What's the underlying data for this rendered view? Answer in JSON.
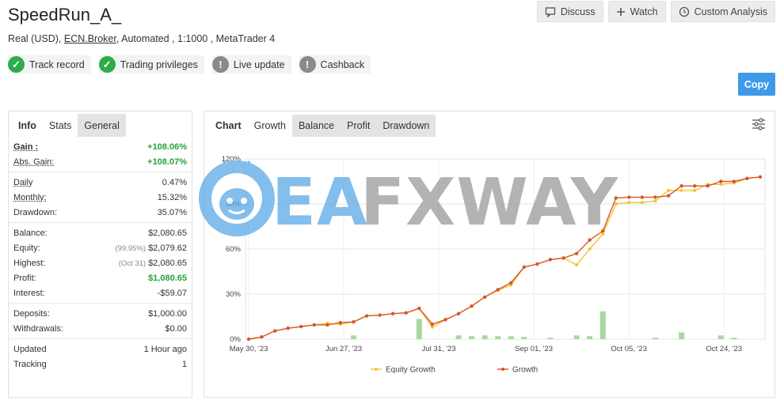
{
  "header": {
    "title": "SpeedRun_A_",
    "account_type": "Real (USD),",
    "broker": "ECN.Broker",
    "details": ", Automated , 1:1000 , MetaTrader 4"
  },
  "actions": {
    "discuss": "Discuss",
    "watch": "Watch",
    "custom_analysis": "Custom Analysis",
    "copy": "Copy"
  },
  "badges": [
    {
      "label": "Track record",
      "status": "ok"
    },
    {
      "label": "Trading privileges",
      "status": "ok"
    },
    {
      "label": "Live update",
      "status": "warn"
    },
    {
      "label": "Cashback",
      "status": "warn"
    }
  ],
  "left_tabs": {
    "info": "Info",
    "stats": "Stats",
    "general": "General"
  },
  "stats": {
    "gain_label": "Gain :",
    "gain": "+108.06%",
    "abs_gain_label": "Abs. Gain:",
    "abs_gain": "+108.07%",
    "daily_label": "Daily",
    "daily": "0.47%",
    "monthly_label": "Monthly:",
    "monthly": "15.32%",
    "drawdown_label": "Drawdown:",
    "drawdown": "35.07%",
    "balance_label": "Balance:",
    "balance": "$2,080.65",
    "equity_label": "Equity:",
    "equity_note": "(99.95%)",
    "equity": "$2,079.62",
    "highest_label": "Highest:",
    "highest_note": "(Oct 31)",
    "highest": "$2,080.65",
    "profit_label": "Profit:",
    "profit": "$1,080.65",
    "interest_label": "Interest:",
    "interest": "-$59.07",
    "deposits_label": "Deposits:",
    "deposits": "$1,000.00",
    "withdrawals_label": "Withdrawals:",
    "withdrawals": "$0.00",
    "updated_label": "Updated",
    "updated": "1 Hour ago",
    "tracking_label": "Tracking",
    "tracking": "1"
  },
  "chart_tabs": {
    "chart": "Chart",
    "growth": "Growth",
    "balance": "Balance",
    "profit": "Profit",
    "drawdown": "Drawdown"
  },
  "watermark": {
    "part1": "EA",
    "part2": "FXWAY"
  },
  "colors": {
    "accent": "#3d9ae8",
    "success": "#2eac4b",
    "growth": "#d9552a",
    "equity": "#f2c42e",
    "bars": "#a8d8a0"
  },
  "chart_data": {
    "type": "line",
    "x_labels": [
      "May 30, '23",
      "Jun 27, '23",
      "Jul 31, '23",
      "Sep 01, '23",
      "Oct 05, '23",
      "Oct 24, '23"
    ],
    "y_ticks": [
      "0%",
      "30%",
      "60%",
      "90%",
      "120%"
    ],
    "ylim": [
      0,
      120
    ],
    "series": [
      {
        "name": "Equity Growth",
        "values": [
          0,
          1.5,
          5.5,
          7.3,
          8.4,
          9.5,
          10.5,
          10,
          11.5,
          15.5,
          16,
          17,
          17.5,
          20.5,
          8,
          13,
          17,
          22,
          28,
          32.5,
          36,
          48,
          50,
          53,
          54,
          49.5,
          60,
          70,
          90,
          91,
          91,
          92,
          99,
          99,
          99,
          103,
          103,
          104,
          107,
          108
        ]
      },
      {
        "name": "Growth",
        "values": [
          0,
          1.5,
          5.5,
          7.3,
          8.4,
          9.5,
          9.5,
          11,
          11.5,
          15.5,
          16,
          17,
          17.5,
          20.5,
          10,
          13,
          17,
          22,
          28,
          33,
          37.5,
          48,
          50,
          53,
          54,
          57,
          66,
          72,
          94,
          94.5,
          94.5,
          94.5,
          95.5,
          102,
          102,
          102,
          105,
          105,
          107,
          108
        ]
      },
      {
        "name": "bars",
        "values": [
          0,
          0,
          0,
          0,
          0,
          0,
          0,
          0,
          2.5,
          0,
          0,
          0,
          0,
          13.5,
          0,
          0,
          2.5,
          2,
          2.5,
          2,
          2,
          1.5,
          0,
          1,
          0,
          2.5,
          2,
          18.5,
          0,
          0,
          0,
          1,
          0,
          4.5,
          0,
          0,
          2.5,
          1,
          0,
          0
        ]
      }
    ],
    "legend": [
      "Equity Growth",
      "Growth"
    ]
  }
}
